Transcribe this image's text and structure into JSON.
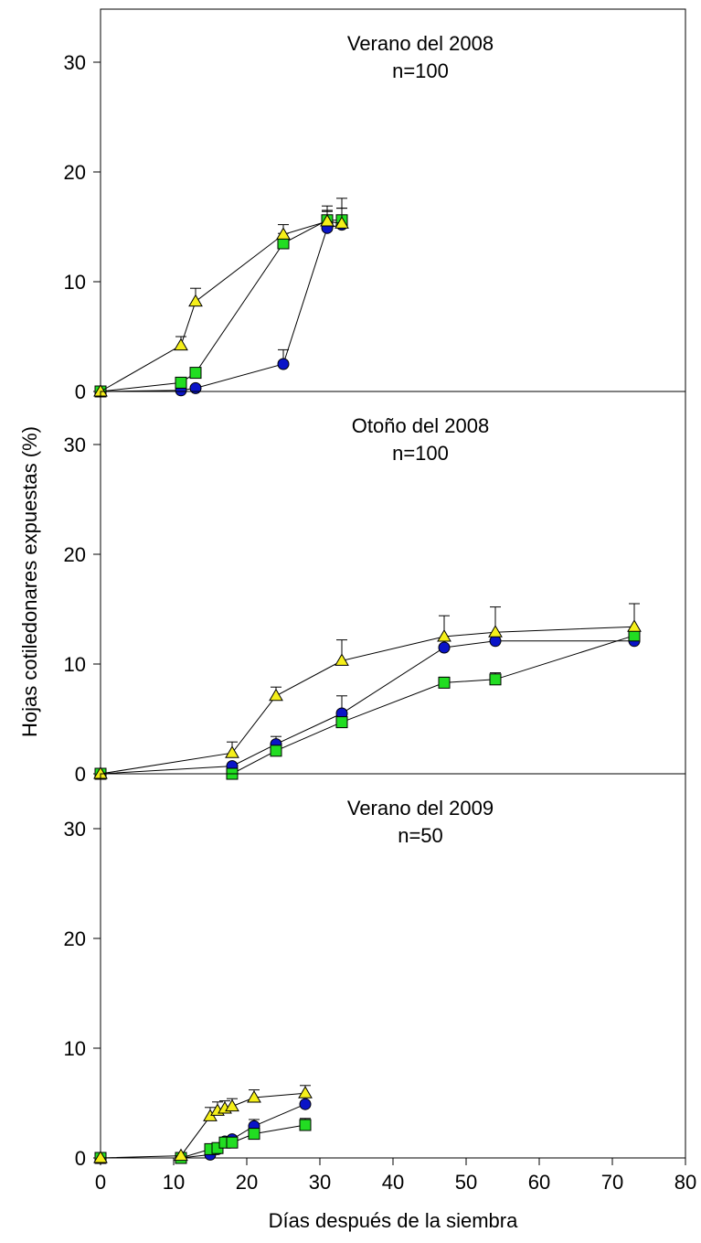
{
  "chart_data": {
    "type": "scatter",
    "xlabel": "Días después de la siembra",
    "ylabel": "Hojas cotiledonares expuestas (%)",
    "xlim": [
      0,
      80
    ],
    "ylim": [
      0,
      35
    ],
    "x_ticks": [
      "0",
      "10",
      "20",
      "30",
      "40",
      "50",
      "60",
      "70",
      "80"
    ],
    "y_ticks": [
      "0",
      "10",
      "20",
      "30"
    ],
    "grid": false,
    "legend": "none",
    "colors": {
      "circle": "#0a14c8",
      "square": "#22dd22",
      "triangle": "#f5ef1a",
      "line": "#000000"
    },
    "panels": [
      {
        "title": "Verano del 2008",
        "subtitle": "n=100",
        "series": [
          {
            "marker": "circle",
            "points": [
              {
                "x": 0,
                "y": 0
              },
              {
                "x": 11,
                "y": 0.1
              },
              {
                "x": 13,
                "y": 0.3
              },
              {
                "x": 25,
                "y": 2.5,
                "err": 1.3
              },
              {
                "x": 31,
                "y": 14.9,
                "err": 1.5
              },
              {
                "x": 33,
                "y": 15.2,
                "err": 1.5
              }
            ]
          },
          {
            "marker": "square",
            "points": [
              {
                "x": 0,
                "y": 0
              },
              {
                "x": 11,
                "y": 0.8
              },
              {
                "x": 13,
                "y": 1.7
              },
              {
                "x": 25,
                "y": 13.5,
                "err": 0.9
              },
              {
                "x": 31,
                "y": 15.6,
                "err": 1.3
              },
              {
                "x": 33,
                "y": 15.6,
                "err": 2.0
              }
            ]
          },
          {
            "marker": "triangle",
            "points": [
              {
                "x": 0,
                "y": 0
              },
              {
                "x": 11,
                "y": 4.2,
                "err": 0.8
              },
              {
                "x": 13,
                "y": 8.2,
                "err": 1.2
              },
              {
                "x": 25,
                "y": 14.3,
                "err": 0.9
              },
              {
                "x": 31,
                "y": 15.5,
                "err": 1.0
              },
              {
                "x": 33,
                "y": 15.3,
                "err": 1.4
              }
            ]
          }
        ]
      },
      {
        "title": "Otoño del 2008",
        "subtitle": "n=100",
        "series": [
          {
            "marker": "circle",
            "points": [
              {
                "x": 0,
                "y": 0
              },
              {
                "x": 18,
                "y": 0.7
              },
              {
                "x": 24,
                "y": 2.7,
                "err": 0.7
              },
              {
                "x": 33,
                "y": 5.5,
                "err": 1.6
              },
              {
                "x": 47,
                "y": 11.5
              },
              {
                "x": 54,
                "y": 12.1
              },
              {
                "x": 73,
                "y": 12.1
              }
            ]
          },
          {
            "marker": "square",
            "points": [
              {
                "x": 0,
                "y": 0
              },
              {
                "x": 18,
                "y": 0
              },
              {
                "x": 24,
                "y": 2.1
              },
              {
                "x": 33,
                "y": 4.7
              },
              {
                "x": 47,
                "y": 8.3,
                "err": 0.5
              },
              {
                "x": 54,
                "y": 8.6,
                "err": 0.6
              },
              {
                "x": 73,
                "y": 12.6
              }
            ]
          },
          {
            "marker": "triangle",
            "points": [
              {
                "x": 0,
                "y": 0
              },
              {
                "x": 18,
                "y": 1.9,
                "err": 1.0
              },
              {
                "x": 24,
                "y": 7.1,
                "err": 0.8
              },
              {
                "x": 33,
                "y": 10.3,
                "err": 1.9
              },
              {
                "x": 47,
                "y": 12.5,
                "err": 1.9
              },
              {
                "x": 54,
                "y": 12.9,
                "err": 2.3
              },
              {
                "x": 73,
                "y": 13.4,
                "err": 2.1
              }
            ]
          }
        ]
      },
      {
        "title": "Verano del 2009",
        "subtitle": "n=50",
        "series": [
          {
            "marker": "circle",
            "points": [
              {
                "x": 0,
                "y": 0
              },
              {
                "x": 11,
                "y": 0
              },
              {
                "x": 15,
                "y": 0.3
              },
              {
                "x": 16,
                "y": 0.8
              },
              {
                "x": 17,
                "y": 1.5
              },
              {
                "x": 18,
                "y": 1.7
              },
              {
                "x": 21,
                "y": 2.9,
                "err": 0.6
              },
              {
                "x": 28,
                "y": 4.9
              }
            ]
          },
          {
            "marker": "square",
            "points": [
              {
                "x": 0,
                "y": 0
              },
              {
                "x": 11,
                "y": 0
              },
              {
                "x": 15,
                "y": 0.8
              },
              {
                "x": 16,
                "y": 0.9
              },
              {
                "x": 17,
                "y": 1.4
              },
              {
                "x": 18,
                "y": 1.4,
                "err": 0.3
              },
              {
                "x": 21,
                "y": 2.2
              },
              {
                "x": 28,
                "y": 3.0,
                "err": 0.6
              }
            ]
          },
          {
            "marker": "triangle",
            "points": [
              {
                "x": 0,
                "y": 0
              },
              {
                "x": 11,
                "y": 0.2
              },
              {
                "x": 15,
                "y": 3.8,
                "err": 0.8
              },
              {
                "x": 16,
                "y": 4.3,
                "err": 0.8
              },
              {
                "x": 17,
                "y": 4.5,
                "err": 0.7
              },
              {
                "x": 18,
                "y": 4.7,
                "err": 0.7
              },
              {
                "x": 21,
                "y": 5.5,
                "err": 0.7
              },
              {
                "x": 28,
                "y": 5.9,
                "err": 0.7
              }
            ]
          }
        ]
      }
    ]
  }
}
